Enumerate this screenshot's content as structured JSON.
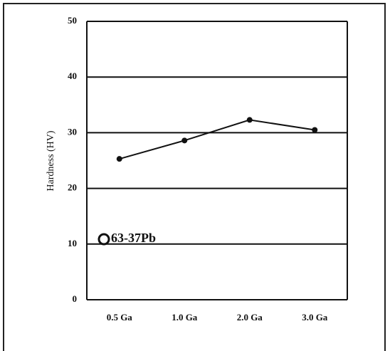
{
  "chart_data": {
    "type": "line",
    "y_label": "Hardness (HV)",
    "categories": [
      "0.5 Ga",
      "1.0 Ga",
      "2.0 Ga",
      "3.0 Ga"
    ],
    "series": [
      {
        "name": "63-37Pb",
        "color": "#111111",
        "values": [
          25.3,
          28.6,
          32.3,
          30.5
        ]
      }
    ],
    "ylim": [
      0,
      50
    ],
    "yticks": [
      0,
      10,
      20,
      30,
      40,
      50
    ],
    "grid": true,
    "legend": "lower-left"
  }
}
